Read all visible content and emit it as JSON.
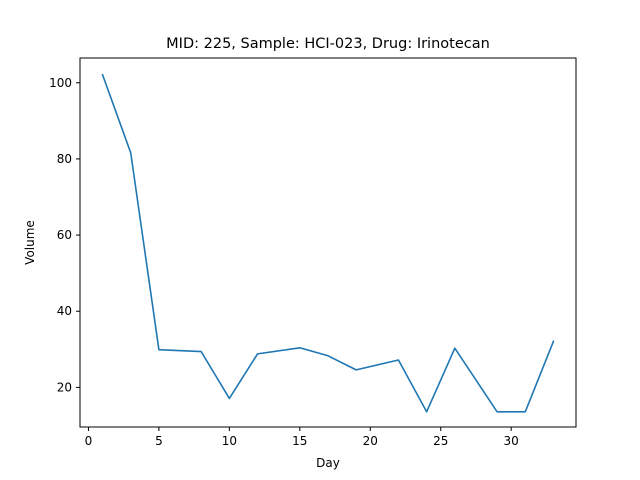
{
  "chart_data": {
    "type": "line",
    "title": "MID: 225, Sample: HCI-023, Drug: Irinotecan",
    "xlabel": "Day",
    "ylabel": "Volume",
    "xlim": [
      -0.6,
      34.6
    ],
    "ylim": [
      9.6,
      106.5
    ],
    "xticks": [
      0,
      5,
      10,
      15,
      20,
      25,
      30
    ],
    "yticks": [
      20,
      40,
      60,
      80,
      100
    ],
    "grid": false,
    "series": [
      {
        "color": "#1f77b4",
        "x": [
          1,
          3,
          5,
          8,
          10,
          12,
          15,
          17,
          19,
          22,
          24,
          26,
          29,
          31,
          33
        ],
        "y": [
          102.1,
          81.6,
          29.9,
          29.4,
          17.1,
          28.8,
          30.4,
          28.3,
          24.6,
          27.2,
          13.6,
          30.3,
          13.6,
          13.6,
          32.1
        ]
      }
    ]
  }
}
